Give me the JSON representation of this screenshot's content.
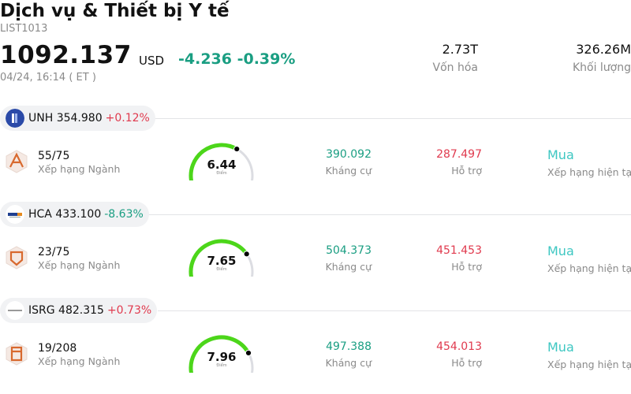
{
  "header": {
    "title": "Dịch vụ & Thiết bị Y tế",
    "code": "LIST1013",
    "price": "1092.137",
    "currency": "USD",
    "change": "-4.236 -0.39%",
    "time": "04/24, 16:14  ( ET )"
  },
  "stats": {
    "market_cap_value": "2.73T",
    "market_cap_label": "Vốn hóa",
    "volume_value": "326.26M",
    "volume_label": "Khối lượng"
  },
  "labels": {
    "rank": "Xếp hạng Ngành",
    "score": "Điểm",
    "resistance": "Kháng cự",
    "support": "Hỗ trợ",
    "rating": "Xếp hạng hiện tại"
  },
  "stocks": [
    {
      "ticker": "UNH",
      "price": "354.980",
      "change": "+0.12%",
      "direction": "up",
      "rank": "55/75",
      "score": "6.44",
      "score_fraction": 0.644,
      "resistance": "390.092",
      "support": "287.497",
      "rating": "Mua"
    },
    {
      "ticker": "HCA",
      "price": "433.100",
      "change": "-8.63%",
      "direction": "down",
      "rank": "23/75",
      "score": "7.65",
      "score_fraction": 0.765,
      "resistance": "504.373",
      "support": "451.453",
      "rating": "Mua"
    },
    {
      "ticker": "ISRG",
      "price": "482.315",
      "change": "+0.73%",
      "direction": "up",
      "rank": "19/208",
      "score": "7.96",
      "score_fraction": 0.796,
      "resistance": "497.388",
      "support": "454.013",
      "rating": "Mua"
    }
  ],
  "colors": {
    "up": "#e03a4e",
    "down": "#1a9e82",
    "gauge_fill": "#4cd61a",
    "gauge_track": "#dcdde2",
    "rating": "#3ec7c2"
  }
}
